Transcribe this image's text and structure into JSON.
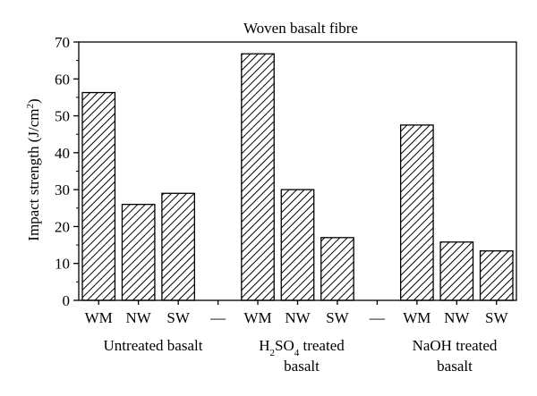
{
  "chart_data": {
    "type": "bar",
    "title": "Woven basalt fibre",
    "ylabel": {
      "main": "Impact strength (J/cm",
      "sup": "2",
      "tail": ")"
    },
    "ylim": [
      0,
      70
    ],
    "yticks": [
      0,
      10,
      20,
      30,
      40,
      50,
      60,
      70
    ],
    "grid": false,
    "categories": [
      "WM",
      "NW",
      "SW",
      "—",
      "WM",
      "NW",
      "SW",
      "—",
      "WM",
      "NW",
      "SW"
    ],
    "values": [
      56.3,
      26.0,
      29.0,
      null,
      66.8,
      30.0,
      17.0,
      null,
      47.5,
      15.8,
      13.4
    ],
    "groups": [
      {
        "line1": "Untreated basalt",
        "line2": ""
      },
      {
        "line1_parts": [
          "H",
          "2",
          "SO",
          "4",
          " treated"
        ],
        "line2": "basalt"
      },
      {
        "line1": "NaOH treated",
        "line2": "basalt"
      }
    ]
  }
}
